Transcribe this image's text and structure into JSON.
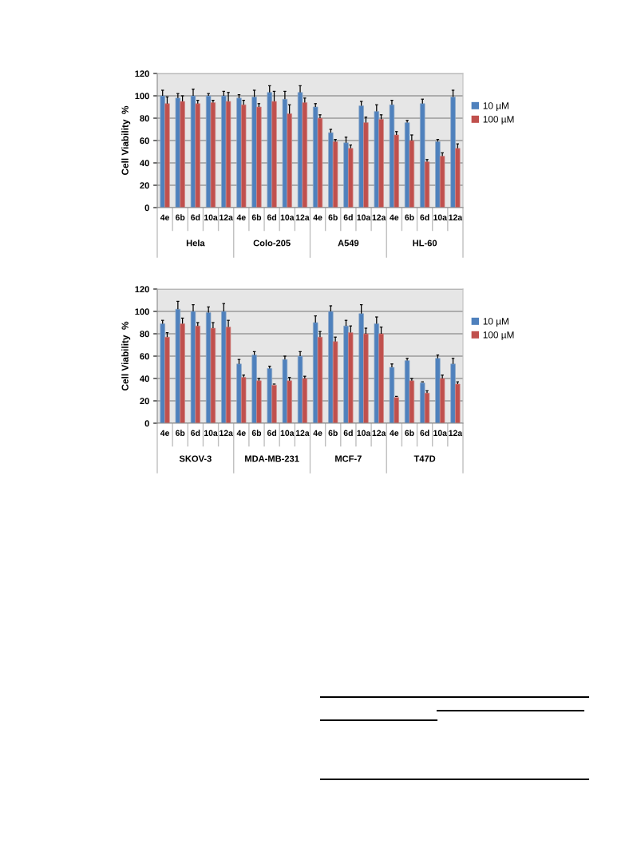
{
  "chart_data": [
    {
      "type": "bar",
      "ylabel": "Cell Viability  %",
      "categories": [
        "4e",
        "6b",
        "6d",
        "10a",
        "12a",
        "4e",
        "6b",
        "6d",
        "10a",
        "12a",
        "4e",
        "6b",
        "6d",
        "10a",
        "12a",
        "4e",
        "6b",
        "6d",
        "10a",
        "12a"
      ],
      "annotations": [
        "Hela",
        "Colo-205",
        "A549",
        "HL-60"
      ],
      "ylim": [
        0,
        120
      ],
      "yticks": [
        0,
        20,
        40,
        60,
        80,
        100,
        120
      ],
      "grid": "y",
      "legend": "right",
      "series": [
        {
          "name": "10 µM",
          "color": "#4f81bd",
          "values": [
            100,
            98,
            100,
            100,
            100,
            98,
            99,
            103,
            97,
            103,
            90,
            67,
            58,
            91,
            86,
            92,
            76,
            93,
            59,
            99
          ],
          "errors": [
            [
              100,
              105
            ],
            [
              98,
              102
            ],
            [
              100,
              106
            ],
            [
              100,
              102
            ],
            [
              100,
              104
            ],
            [
              98,
              101
            ],
            [
              99,
              105
            ],
            [
              103,
              109
            ],
            [
              97,
              104
            ],
            [
              103,
              109
            ],
            [
              90,
              93
            ],
            [
              67,
              70
            ],
            [
              58,
              63
            ],
            [
              91,
              95
            ],
            [
              86,
              92
            ],
            [
              92,
              96
            ],
            [
              76,
              78
            ],
            [
              93,
              97
            ],
            [
              59,
              61
            ],
            [
              99,
              105
            ]
          ]
        },
        {
          "name": "100 µM",
          "color": "#c0504d",
          "values": [
            93,
            95,
            93,
            94,
            95,
            92,
            90,
            95,
            84,
            94,
            80,
            59,
            53,
            76,
            79,
            65,
            60,
            41,
            46,
            53
          ],
          "errors": [
            [
              93,
              99
            ],
            [
              95,
              100
            ],
            [
              93,
              96
            ],
            [
              94,
              96
            ],
            [
              95,
              103
            ],
            [
              92,
              96
            ],
            [
              90,
              93
            ],
            [
              95,
              104
            ],
            [
              84,
              92
            ],
            [
              94,
              98
            ],
            [
              80,
              83
            ],
            [
              59,
              61
            ],
            [
              53,
              56
            ],
            [
              76,
              81
            ],
            [
              79,
              83
            ],
            [
              65,
              68
            ],
            [
              60,
              65
            ],
            [
              41,
              43
            ],
            [
              46,
              49
            ],
            [
              53,
              57
            ]
          ]
        }
      ]
    },
    {
      "type": "bar",
      "ylabel": "Cell Viability  %",
      "categories": [
        "4e",
        "6b",
        "6d",
        "10a",
        "12a",
        "4e",
        "6b",
        "6d",
        "10a",
        "12a",
        "4e",
        "6b",
        "6d",
        "10a",
        "12a",
        "4e",
        "6b",
        "6d",
        "10a",
        "12a"
      ],
      "annotations": [
        "SKOV-3",
        "MDA-MB-231",
        "MCF-7",
        "T47D"
      ],
      "ylim": [
        0,
        120
      ],
      "yticks": [
        0,
        20,
        40,
        60,
        80,
        100,
        120
      ],
      "grid": "y",
      "legend": "right",
      "series": [
        {
          "name": "10 µM",
          "color": "#4f81bd",
          "values": [
            89,
            102,
            100,
            99,
            100,
            53,
            61,
            49,
            57,
            60,
            90,
            100,
            87,
            98,
            89,
            50,
            56,
            36,
            58,
            53
          ],
          "errors": [
            [
              89,
              92
            ],
            [
              102,
              109
            ],
            [
              100,
              106
            ],
            [
              99,
              104
            ],
            [
              100,
              107
            ],
            [
              53,
              57
            ],
            [
              61,
              64
            ],
            [
              49,
              51
            ],
            [
              57,
              60
            ],
            [
              60,
              64
            ],
            [
              90,
              96
            ],
            [
              100,
              105
            ],
            [
              87,
              92
            ],
            [
              98,
              106
            ],
            [
              89,
              95
            ],
            [
              50,
              53
            ],
            [
              56,
              58
            ],
            [
              36,
              37
            ],
            [
              58,
              61
            ],
            [
              53,
              58
            ]
          ]
        },
        {
          "name": "100 µM",
          "color": "#c0504d",
          "values": [
            77,
            89,
            87,
            85,
            86,
            41,
            38,
            34,
            38,
            40,
            77,
            73,
            81,
            80,
            80,
            23,
            38,
            27,
            40,
            35
          ],
          "errors": [
            [
              77,
              81
            ],
            [
              89,
              94
            ],
            [
              87,
              90
            ],
            [
              85,
              90
            ],
            [
              86,
              92
            ],
            [
              41,
              43
            ],
            [
              38,
              40
            ],
            [
              34,
              35
            ],
            [
              38,
              41
            ],
            [
              40,
              42
            ],
            [
              77,
              82
            ],
            [
              73,
              77
            ],
            [
              81,
              87
            ],
            [
              80,
              85
            ],
            [
              80,
              86
            ],
            [
              23,
              24
            ],
            [
              38,
              40
            ],
            [
              27,
              29
            ],
            [
              40,
              43
            ],
            [
              35,
              37
            ]
          ]
        }
      ]
    }
  ]
}
